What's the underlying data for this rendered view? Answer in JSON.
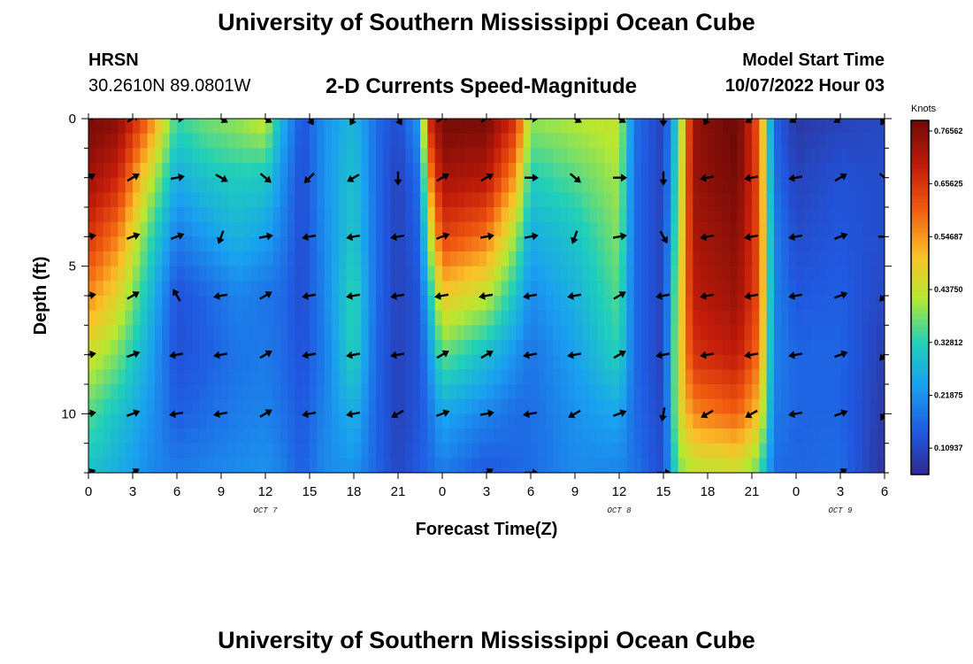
{
  "header": {
    "title": "University of Southern Mississippi Ocean Cube",
    "station": "HRSN",
    "coords": "30.2610N  89.0801W",
    "subtitle": "2-D Currents Speed-Magnitude",
    "start_label": "Model Start Time",
    "start_value": "10/07/2022 Hour 03"
  },
  "footer": {
    "title": "University of Southern Mississippi Ocean Cube"
  },
  "chart_data": {
    "type": "heatmap",
    "title": "2-D Currents Speed-Magnitude",
    "xlabel": "Forecast Time(Z)",
    "ylabel": "Depth (ft)",
    "x_range_hours": [
      0,
      54
    ],
    "y_range_ft": [
      0,
      12
    ],
    "x_ticks": [
      "0",
      "3",
      "6",
      "9",
      "12",
      "15",
      "18",
      "21",
      "0",
      "3",
      "6",
      "9",
      "12",
      "15",
      "18",
      "21",
      "0",
      "3",
      "6"
    ],
    "y_ticks": [
      "0",
      "5",
      "10"
    ],
    "date_labels": [
      {
        "label": "OCT 7",
        "hour": 12
      },
      {
        "label": "OCT 8",
        "hour": 36
      },
      {
        "label": "OCT 9",
        "hour": 51
      }
    ],
    "colorbar": {
      "unit": "Knots",
      "min": 0.0547,
      "max": 0.7875,
      "labels": [
        "0.76562",
        "0.65625",
        "0.54687",
        "0.43750",
        "0.32812",
        "0.21875",
        "0.10937"
      ]
    },
    "depth_rows_ft": [
      0,
      2,
      4,
      6,
      8,
      10,
      12
    ],
    "column_speed_profiles": [
      {
        "hour": 0,
        "speed": [
          0.78,
          0.74,
          0.66,
          0.56,
          0.45,
          0.36,
          0.3
        ]
      },
      {
        "hour": 2,
        "speed": [
          0.76,
          0.68,
          0.57,
          0.47,
          0.38,
          0.3,
          0.26
        ]
      },
      {
        "hour": 4,
        "speed": [
          0.6,
          0.46,
          0.36,
          0.3,
          0.26,
          0.23,
          0.21
        ]
      },
      {
        "hour": 6,
        "speed": [
          0.34,
          0.26,
          0.19,
          0.13,
          0.13,
          0.15,
          0.19
        ]
      },
      {
        "hour": 8,
        "speed": [
          0.38,
          0.3,
          0.23,
          0.16,
          0.15,
          0.17,
          0.2
        ]
      },
      {
        "hour": 10,
        "speed": [
          0.4,
          0.32,
          0.27,
          0.2,
          0.18,
          0.19,
          0.21
        ]
      },
      {
        "hour": 12,
        "speed": [
          0.44,
          0.31,
          0.24,
          0.18,
          0.19,
          0.2,
          0.22
        ]
      },
      {
        "hour": 13,
        "speed": [
          0.28,
          0.23,
          0.2,
          0.17,
          0.17,
          0.18,
          0.2
        ]
      },
      {
        "hour": 14.5,
        "speed": [
          0.13,
          0.12,
          0.12,
          0.12,
          0.13,
          0.14,
          0.15
        ]
      },
      {
        "hour": 16,
        "speed": [
          0.22,
          0.22,
          0.21,
          0.2,
          0.19,
          0.2,
          0.21
        ]
      },
      {
        "hour": 18,
        "speed": [
          0.28,
          0.3,
          0.31,
          0.34,
          0.33,
          0.27,
          0.22
        ]
      },
      {
        "hour": 19.5,
        "speed": [
          0.17,
          0.17,
          0.17,
          0.17,
          0.16,
          0.16,
          0.16
        ]
      },
      {
        "hour": 21,
        "speed": [
          0.12,
          0.1,
          0.1,
          0.1,
          0.1,
          0.1,
          0.11
        ]
      },
      {
        "hour": 22.5,
        "speed": [
          0.24,
          0.18,
          0.16,
          0.14,
          0.14,
          0.14,
          0.15
        ]
      },
      {
        "hour": 23,
        "speed": [
          0.66,
          0.52,
          0.38,
          0.27,
          0.2,
          0.17,
          0.16
        ]
      },
      {
        "hour": 24,
        "speed": [
          0.78,
          0.73,
          0.64,
          0.49,
          0.37,
          0.25,
          0.19
        ]
      },
      {
        "hour": 27,
        "speed": [
          0.78,
          0.71,
          0.58,
          0.43,
          0.29,
          0.2,
          0.14
        ]
      },
      {
        "hour": 29,
        "speed": [
          0.66,
          0.54,
          0.4,
          0.3,
          0.22,
          0.17,
          0.16
        ]
      },
      {
        "hour": 30,
        "speed": [
          0.4,
          0.32,
          0.26,
          0.21,
          0.18,
          0.17,
          0.17
        ]
      },
      {
        "hour": 33,
        "speed": [
          0.42,
          0.36,
          0.3,
          0.27,
          0.24,
          0.22,
          0.21
        ]
      },
      {
        "hour": 36,
        "speed": [
          0.44,
          0.41,
          0.39,
          0.36,
          0.33,
          0.25,
          0.2
        ]
      },
      {
        "hour": 37,
        "speed": [
          0.18,
          0.17,
          0.17,
          0.17,
          0.17,
          0.17,
          0.18
        ]
      },
      {
        "hour": 39,
        "speed": [
          0.1,
          0.1,
          0.1,
          0.1,
          0.1,
          0.11,
          0.12
        ]
      },
      {
        "hour": 40,
        "speed": [
          0.34,
          0.37,
          0.4,
          0.43,
          0.45,
          0.44,
          0.38
        ]
      },
      {
        "hour": 41,
        "speed": [
          0.74,
          0.74,
          0.72,
          0.7,
          0.66,
          0.56,
          0.42
        ]
      },
      {
        "hour": 44,
        "speed": [
          0.8,
          0.78,
          0.76,
          0.74,
          0.7,
          0.6,
          0.44
        ]
      },
      {
        "hour": 45.5,
        "speed": [
          0.6,
          0.62,
          0.62,
          0.62,
          0.58,
          0.5,
          0.36
        ]
      },
      {
        "hour": 46.5,
        "speed": [
          0.16,
          0.18,
          0.2,
          0.2,
          0.2,
          0.19,
          0.17
        ]
      },
      {
        "hour": 48,
        "speed": [
          0.08,
          0.1,
          0.12,
          0.14,
          0.16,
          0.16,
          0.16
        ]
      },
      {
        "hour": 51,
        "speed": [
          0.1,
          0.13,
          0.14,
          0.15,
          0.16,
          0.16,
          0.17
        ]
      },
      {
        "hour": 54,
        "speed": [
          0.11,
          0.12,
          0.12,
          0.11,
          0.09,
          0.08,
          0.07
        ]
      }
    ],
    "arrows": {
      "hours": [
        0,
        3,
        6,
        9,
        12,
        15,
        18,
        21,
        24,
        27,
        30,
        33,
        36,
        39,
        42,
        45,
        48,
        51,
        54
      ],
      "depths_ft": [
        0,
        2,
        4,
        6,
        8,
        10,
        12
      ],
      "present": [
        "1111111111111111111",
        "1111111111111111111",
        "1111111111111111111",
        "1111111111111111111",
        "1111111111111111111",
        "1111111111111111111",
        "1100000001100100011"
      ],
      "direction_deg": [
        [
          30,
          30,
          0,
          -30,
          -30,
          -60,
          -120,
          -60,
          30,
          30,
          0,
          -30,
          -30,
          -90,
          -120,
          -150,
          -150,
          -150,
          -120
        ],
        [
          30,
          30,
          10,
          -30,
          -40,
          -135,
          -150,
          -90,
          30,
          30,
          0,
          -40,
          0,
          -90,
          -170,
          -170,
          -170,
          30,
          -40
        ],
        [
          10,
          20,
          20,
          -110,
          10,
          -170,
          -170,
          -170,
          20,
          10,
          10,
          -110,
          10,
          -60,
          -170,
          -170,
          -170,
          20,
          0
        ],
        [
          10,
          30,
          120,
          -170,
          30,
          -170,
          -170,
          -170,
          -170,
          -170,
          -170,
          -170,
          30,
          -170,
          -170,
          -170,
          -170,
          20,
          -130
        ],
        [
          10,
          20,
          -170,
          -170,
          30,
          -170,
          -170,
          -170,
          30,
          30,
          -170,
          -170,
          30,
          -170,
          -170,
          -170,
          -170,
          20,
          -130
        ],
        [
          10,
          20,
          -170,
          -170,
          30,
          -170,
          -170,
          -150,
          20,
          10,
          -170,
          -150,
          20,
          -100,
          -150,
          -150,
          -170,
          20,
          -120
        ],
        [
          20,
          30,
          0,
          0,
          0,
          0,
          0,
          0,
          30,
          30,
          0,
          0,
          0,
          0,
          0,
          0,
          0,
          30,
          30
        ]
      ]
    }
  }
}
